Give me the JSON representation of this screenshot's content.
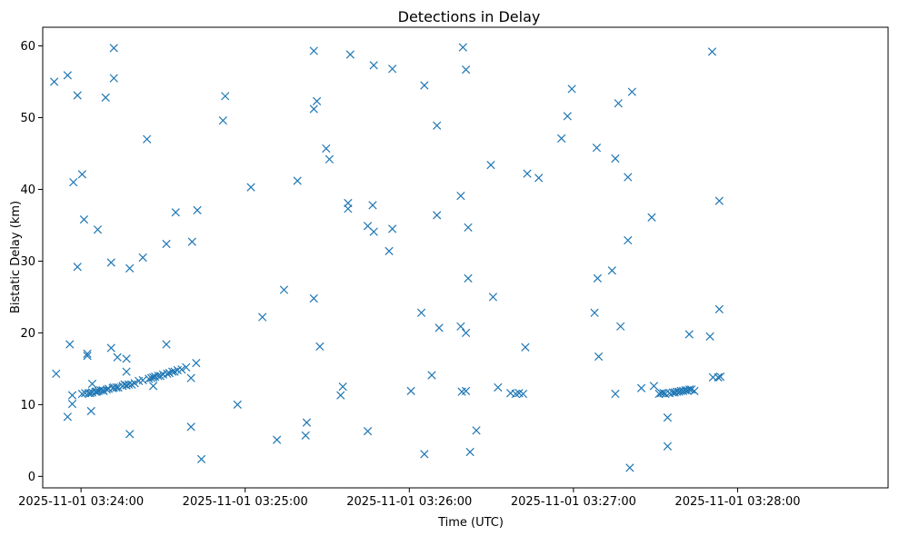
{
  "chart_data": {
    "type": "scatter",
    "title": "Detections in Delay",
    "xlabel": "Time (UTC)",
    "ylabel": "Bistatic Delay (km)",
    "x_unit": "seconds after 2025-11-01 03:23:00",
    "x_range_seconds": [
      46,
      355
    ],
    "ylim": [
      -1.6,
      62.6
    ],
    "marker": "x",
    "color": "#1f77b4",
    "grid": false,
    "x_ticks": [
      {
        "label": "2025-11-01 03:24:00",
        "t": 60
      },
      {
        "label": "2025-11-01 03:25:00",
        "t": 120
      },
      {
        "label": "2025-11-01 03:26:00",
        "t": 180
      },
      {
        "label": "2025-11-01 03:27:00",
        "t": 240
      },
      {
        "label": "2025-11-01 03:28:00",
        "t": 300
      }
    ],
    "y_ticks": [
      0,
      10,
      20,
      30,
      40,
      50,
      60
    ],
    "points": [
      [
        50.2,
        55.0
      ],
      [
        50.9,
        14.3
      ],
      [
        55.1,
        55.9
      ],
      [
        55.1,
        8.3
      ],
      [
        55.9,
        18.4
      ],
      [
        56.8,
        11.3
      ],
      [
        56.8,
        10.1
      ],
      [
        57.2,
        41.0
      ],
      [
        58.7,
        29.2
      ],
      [
        58.7,
        53.1
      ],
      [
        60.4,
        42.1
      ],
      [
        60.4,
        11.5
      ],
      [
        61.1,
        35.8
      ],
      [
        61.5,
        11.6
      ],
      [
        62.3,
        17.1
      ],
      [
        62.3,
        16.8
      ],
      [
        62.7,
        11.6
      ],
      [
        63.4,
        11.6
      ],
      [
        63.7,
        9.1
      ],
      [
        64.1,
        12.9
      ],
      [
        64.1,
        11.7
      ],
      [
        65.3,
        11.8
      ],
      [
        65.7,
        11.8
      ],
      [
        66.1,
        34.4
      ],
      [
        66.4,
        11.9
      ],
      [
        67.1,
        12.0
      ],
      [
        67.9,
        12.0
      ],
      [
        68.3,
        11.9
      ],
      [
        69.0,
        52.8
      ],
      [
        69.4,
        12.1
      ],
      [
        70.1,
        12.2
      ],
      [
        71.0,
        29.8
      ],
      [
        71.0,
        17.9
      ],
      [
        71.6,
        12.3
      ],
      [
        72.0,
        59.7
      ],
      [
        72.0,
        55.5
      ],
      [
        72.0,
        12.4
      ],
      [
        72.9,
        12.4
      ],
      [
        73.3,
        16.6
      ],
      [
        73.6,
        12.4
      ],
      [
        75.2,
        12.6
      ],
      [
        75.9,
        12.8
      ],
      [
        76.6,
        16.4
      ],
      [
        76.6,
        14.6
      ],
      [
        76.6,
        12.7
      ],
      [
        77.4,
        12.8
      ],
      [
        77.8,
        29.0
      ],
      [
        77.8,
        5.9
      ],
      [
        78.5,
        12.8
      ],
      [
        79.6,
        13.0
      ],
      [
        81.1,
        13.3
      ],
      [
        82.6,
        30.5
      ],
      [
        82.6,
        13.4
      ],
      [
        84.1,
        47.0
      ],
      [
        84.8,
        13.6
      ],
      [
        85.7,
        13.7
      ],
      [
        86.4,
        13.8
      ],
      [
        86.4,
        12.6
      ],
      [
        87.1,
        13.9
      ],
      [
        88.2,
        14.0
      ],
      [
        89.0,
        14.0
      ],
      [
        90.0,
        14.2
      ],
      [
        91.2,
        32.4
      ],
      [
        91.2,
        18.4
      ],
      [
        91.5,
        14.3
      ],
      [
        92.3,
        14.4
      ],
      [
        93.4,
        14.6
      ],
      [
        94.2,
        14.6
      ],
      [
        94.6,
        36.8
      ],
      [
        95.3,
        14.8
      ],
      [
        96.8,
        14.9
      ],
      [
        98.4,
        15.2
      ],
      [
        100.2,
        6.9
      ],
      [
        100.2,
        13.7
      ],
      [
        100.6,
        32.7
      ],
      [
        102.1,
        15.8
      ],
      [
        102.5,
        37.1
      ],
      [
        104.0,
        2.4
      ],
      [
        111.9,
        49.6
      ],
      [
        112.7,
        53.0
      ],
      [
        117.2,
        10.0
      ],
      [
        122.1,
        40.3
      ],
      [
        126.3,
        22.2
      ],
      [
        131.6,
        5.1
      ],
      [
        134.2,
        26.0
      ],
      [
        139.1,
        41.2
      ],
      [
        142.1,
        5.7
      ],
      [
        142.5,
        7.5
      ],
      [
        145.1,
        59.3
      ],
      [
        145.1,
        24.8
      ],
      [
        145.1,
        51.2
      ],
      [
        146.2,
        52.3
      ],
      [
        147.3,
        18.1
      ],
      [
        149.6,
        45.7
      ],
      [
        150.8,
        44.2
      ],
      [
        154.9,
        11.3
      ],
      [
        155.7,
        12.5
      ],
      [
        157.6,
        38.1
      ],
      [
        157.6,
        37.3
      ],
      [
        158.4,
        58.8
      ],
      [
        164.8,
        6.3
      ],
      [
        164.8,
        34.9
      ],
      [
        166.6,
        37.8
      ],
      [
        167.0,
        34.1
      ],
      [
        167.0,
        57.3
      ],
      [
        172.6,
        31.4
      ],
      [
        173.8,
        56.8
      ],
      [
        173.8,
        34.5
      ],
      [
        180.6,
        11.9
      ],
      [
        184.4,
        22.8
      ],
      [
        185.5,
        54.5
      ],
      [
        185.5,
        3.1
      ],
      [
        188.2,
        14.1
      ],
      [
        190.1,
        36.4
      ],
      [
        190.1,
        48.9
      ],
      [
        190.9,
        20.7
      ],
      [
        198.8,
        39.1
      ],
      [
        198.8,
        20.9
      ],
      [
        199.2,
        11.8
      ],
      [
        199.6,
        59.8
      ],
      [
        200.7,
        11.9
      ],
      [
        200.7,
        56.7
      ],
      [
        200.7,
        20.0
      ],
      [
        201.5,
        34.7
      ],
      [
        201.5,
        27.6
      ],
      [
        202.2,
        3.4
      ],
      [
        204.5,
        6.4
      ],
      [
        209.8,
        43.4
      ],
      [
        210.6,
        25.0
      ],
      [
        212.4,
        12.4
      ],
      [
        217.0,
        11.6
      ],
      [
        218.9,
        11.5
      ],
      [
        220.1,
        11.6
      ],
      [
        221.6,
        11.5
      ],
      [
        222.4,
        18.0
      ],
      [
        223.1,
        42.2
      ],
      [
        227.3,
        41.6
      ],
      [
        235.6,
        47.1
      ],
      [
        237.8,
        50.2
      ],
      [
        239.4,
        54.0
      ],
      [
        247.7,
        22.8
      ],
      [
        248.5,
        45.8
      ],
      [
        248.8,
        27.6
      ],
      [
        249.2,
        16.7
      ],
      [
        254.1,
        28.7
      ],
      [
        255.3,
        44.3
      ],
      [
        255.3,
        11.5
      ],
      [
        256.4,
        52.0
      ],
      [
        257.2,
        20.9
      ],
      [
        259.9,
        32.9
      ],
      [
        259.9,
        41.7
      ],
      [
        260.6,
        1.2
      ],
      [
        261.4,
        53.6
      ],
      [
        264.8,
        12.3
      ],
      [
        268.6,
        36.1
      ],
      [
        269.4,
        12.6
      ],
      [
        282.3,
        19.8
      ],
      [
        284.2,
        11.9
      ],
      [
        289.9,
        19.5
      ],
      [
        290.7,
        59.2
      ],
      [
        291.0,
        13.8
      ],
      [
        292.9,
        13.8
      ],
      [
        293.3,
        38.4
      ],
      [
        293.3,
        23.3
      ],
      [
        293.7,
        13.9
      ],
      [
        271.3,
        11.5
      ],
      [
        272.1,
        11.6
      ],
      [
        272.9,
        11.6
      ],
      [
        273.6,
        11.5
      ],
      [
        274.4,
        8.2
      ],
      [
        274.4,
        4.2
      ],
      [
        275.1,
        11.6
      ],
      [
        276.3,
        11.7
      ],
      [
        277.0,
        11.7
      ],
      [
        277.8,
        11.8
      ],
      [
        278.6,
        11.8
      ],
      [
        279.3,
        11.9
      ],
      [
        280.1,
        11.9
      ],
      [
        280.9,
        12.0
      ],
      [
        281.6,
        12.0
      ],
      [
        282.4,
        12.1
      ],
      [
        283.1,
        12.1
      ]
    ]
  }
}
